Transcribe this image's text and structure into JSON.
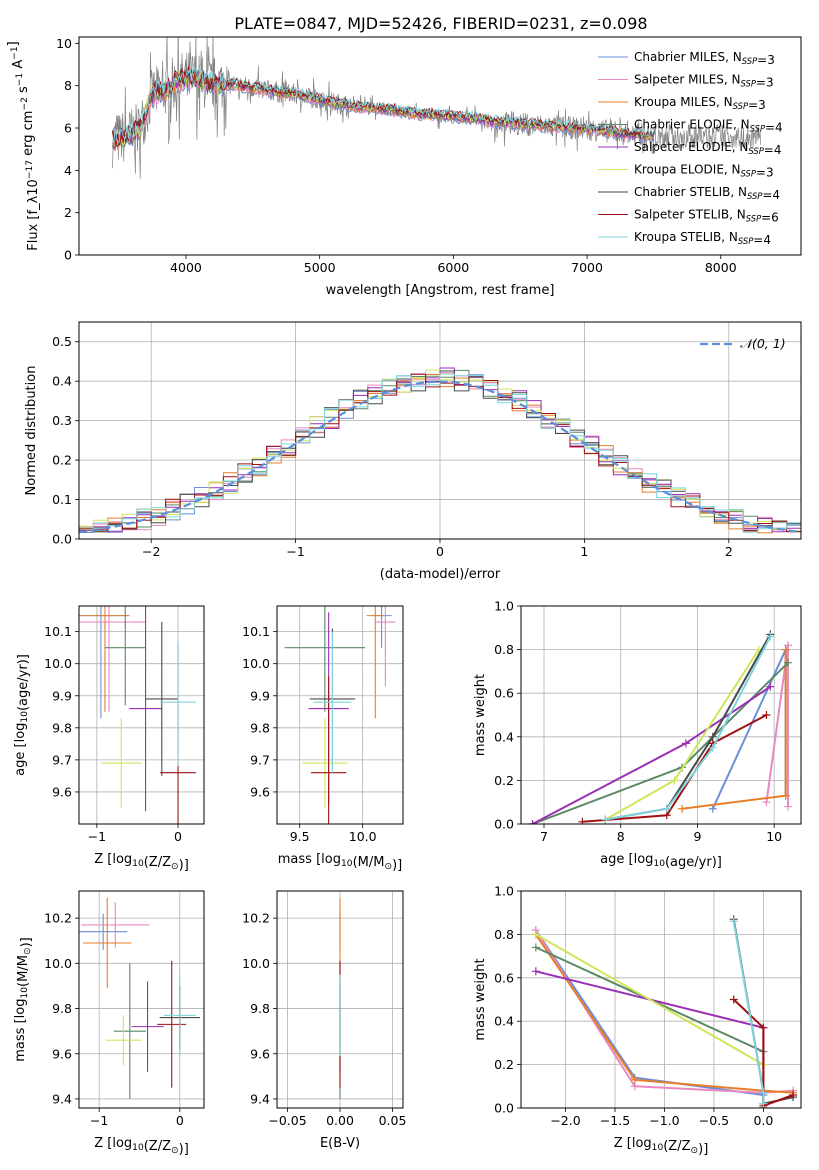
{
  "figure": {
    "title": "PLATE=0847, MJD=52426, FIBERID=0231, z=0.098"
  },
  "colors": {
    "chabrier_miles": "#6a8fd8",
    "salpeter_miles": "#e889c0",
    "kroupa_miles": "#e87e2a",
    "chabrier_elodie": "#5a8a64",
    "salpeter_elodie": "#9a2eb4",
    "kroupa_elodie": "#cfe65a",
    "chabrier_stelib": "#4a4a4a",
    "salpeter_stelib": "#a01010",
    "kroupa_stelib": "#7fd3dc",
    "data": "#808080",
    "gauss": "#5b8fdc"
  },
  "chart_data": [
    {
      "id": "spectrum",
      "type": "line",
      "xlabel": "wavelength [Angstrom, rest frame]",
      "ylabel": "Flux [f_λ10^-17 erg cm^-2 s^-1 A^-1]",
      "xlim": [
        3200,
        8600
      ],
      "ylim": [
        0,
        10.3
      ],
      "xticks": [
        4000,
        5000,
        6000,
        7000,
        8000
      ],
      "yticks": [
        0,
        2,
        4,
        6,
        8,
        10
      ],
      "legend_position": "top-right",
      "legend": [
        "Chabrier MILES, N_SSP=3",
        "Salpeter MILES, N_SSP=3",
        "Kroupa MILES, N_SSP=3",
        "Chabrier ELODIE, N_SSP=4",
        "Salpeter ELODIE, N_SSP=4",
        "Kroupa ELODIE, N_SSP=3",
        "Chabrier STELIB, N_SSP=4",
        "Salpeter STELIB, N_SSP=6",
        "Kroupa STELIB, N_SSP=4"
      ],
      "model_x": [
        3450,
        3550,
        3650,
        3750,
        3850,
        3950,
        4050,
        4150,
        4300,
        4500,
        4700,
        4900,
        5100,
        5300,
        5500,
        5700,
        5900,
        6100,
        6300,
        6500,
        6700,
        6900,
        7100,
        7300,
        7500
      ],
      "model_y": [
        5.4,
        5.6,
        5.9,
        7.6,
        7.8,
        8.3,
        8.4,
        8.1,
        8.1,
        7.9,
        7.7,
        7.5,
        7.2,
        7.0,
        6.9,
        6.7,
        6.6,
        6.5,
        6.3,
        6.2,
        6.1,
        6.0,
        5.9,
        5.7,
        5.6
      ]
    },
    {
      "id": "residuals",
      "type": "line",
      "xlabel": "(data-model)/error",
      "ylabel": "Normed distribution",
      "xlim": [
        -2.5,
        2.5
      ],
      "ylim": [
        0,
        0.55
      ],
      "xticks": [
        -2,
        -1,
        0,
        1,
        2
      ],
      "yticks": [
        0.0,
        0.1,
        0.2,
        0.3,
        0.4,
        0.5
      ],
      "legend": [
        "𝒩(0, 1)"
      ],
      "legend_position": "top-right",
      "bin_width": 0.1
    },
    {
      "id": "age_vs_Z",
      "type": "scatter",
      "xlabel": "Z [log10(Z/Z☉)]",
      "ylabel": "age  [log10(age/yr)]",
      "xlim": [
        -1.22,
        0.32
      ],
      "ylim": [
        9.5,
        10.18
      ],
      "xticks": [
        -1,
        0
      ],
      "yticks": [
        9.6,
        9.7,
        9.8,
        9.9,
        10.0,
        10.1
      ],
      "points": [
        {
          "model": "chabrier_miles",
          "x": -0.95,
          "y": 10.15,
          "xerr": 0.35,
          "yerr": 0.32
        },
        {
          "model": "salpeter_miles",
          "x": -0.85,
          "y": 10.13,
          "xerr": 0.45,
          "yerr": 0.28
        },
        {
          "model": "kroupa_miles",
          "x": -0.9,
          "y": 10.15,
          "xerr": 0.3,
          "yerr": 0.3
        },
        {
          "model": "chabrier_elodie",
          "x": -0.65,
          "y": 10.05,
          "xerr": 0.25,
          "yerr": 0.18
        },
        {
          "model": "salpeter_elodie",
          "x": -0.4,
          "y": 9.86,
          "xerr": 0.2,
          "yerr": 0.32
        },
        {
          "model": "kroupa_elodie",
          "x": -0.7,
          "y": 9.69,
          "xerr": 0.25,
          "yerr": 0.14
        },
        {
          "model": "chabrier_stelib",
          "x": -0.2,
          "y": 9.89,
          "xerr": 0.2,
          "yerr": 0.24
        },
        {
          "model": "salpeter_stelib",
          "x": 0.0,
          "y": 9.66,
          "xerr": 0.22,
          "yerr": 0.4
        },
        {
          "model": "kroupa_stelib",
          "x": 0.0,
          "y": 9.88,
          "xerr": 0.22,
          "yerr": 0.2
        }
      ]
    },
    {
      "id": "age_vs_mass",
      "type": "scatter",
      "xlabel": "mass [log10(M/M☉)]",
      "ylabel": "",
      "xlim": [
        9.32,
        10.32
      ],
      "ylim": [
        9.5,
        10.18
      ],
      "xticks": [
        9.5,
        10.0
      ],
      "yticks": [
        9.6,
        9.7,
        9.8,
        9.9,
        10.0,
        10.1
      ],
      "points": [
        {
          "model": "chabrier_miles",
          "x": 10.15,
          "y": 10.15,
          "xerr": 0.08,
          "yerr": 0.1
        },
        {
          "model": "salpeter_miles",
          "x": 10.18,
          "y": 10.13,
          "xerr": 0.08,
          "yerr": 0.2
        },
        {
          "model": "kroupa_miles",
          "x": 10.1,
          "y": 10.15,
          "xerr": 0.07,
          "yerr": 0.32
        },
        {
          "model": "chabrier_elodie",
          "x": 9.7,
          "y": 10.05,
          "xerr": 0.32,
          "yerr": 0.2
        },
        {
          "model": "salpeter_elodie",
          "x": 9.73,
          "y": 9.86,
          "xerr": 0.16,
          "yerr": 0.3
        },
        {
          "model": "kroupa_elodie",
          "x": 9.7,
          "y": 9.69,
          "xerr": 0.18,
          "yerr": 0.14
        },
        {
          "model": "chabrier_stelib",
          "x": 9.76,
          "y": 9.89,
          "xerr": 0.18,
          "yerr": 0.22
        },
        {
          "model": "salpeter_stelib",
          "x": 9.73,
          "y": 9.66,
          "xerr": 0.14,
          "yerr": 0.3
        },
        {
          "model": "kroupa_stelib",
          "x": 9.76,
          "y": 9.88,
          "xerr": 0.15,
          "yerr": 0.22
        }
      ]
    },
    {
      "id": "weight_vs_age",
      "type": "line",
      "xlabel": "age  [log10(age/yr)]",
      "ylabel": "mass weight",
      "xlim": [
        6.7,
        10.35
      ],
      "ylim": [
        0,
        1.0
      ],
      "xticks": [
        7,
        8,
        9,
        10
      ],
      "yticks": [
        0.0,
        0.2,
        0.4,
        0.6,
        0.8,
        1.0
      ],
      "series": [
        {
          "model": "chabrier_miles",
          "x": [
            9.2,
            10.15,
            10.15
          ],
          "y": [
            0.07,
            0.8,
            0.13
          ]
        },
        {
          "model": "salpeter_miles",
          "x": [
            9.9,
            10.18,
            10.18
          ],
          "y": [
            0.1,
            0.82,
            0.08
          ]
        },
        {
          "model": "kroupa_miles",
          "x": [
            8.8,
            10.15,
            10.15
          ],
          "y": [
            0.07,
            0.13,
            0.8
          ]
        },
        {
          "model": "chabrier_elodie",
          "x": [
            6.85,
            8.8,
            10.18
          ],
          "y": [
            0.0,
            0.26,
            0.74
          ]
        },
        {
          "model": "salpeter_elodie",
          "x": [
            6.85,
            8.85,
            9.95
          ],
          "y": [
            0.0,
            0.37,
            0.63
          ]
        },
        {
          "model": "kroupa_elodie",
          "x": [
            7.8,
            8.7,
            9.8
          ],
          "y": [
            0.02,
            0.2,
            0.8
          ]
        },
        {
          "model": "chabrier_stelib",
          "x": [
            7.8,
            8.6,
            9.2,
            9.95
          ],
          "y": [
            0.02,
            0.07,
            0.4,
            0.87
          ]
        },
        {
          "model": "salpeter_stelib",
          "x": [
            7.5,
            8.6,
            9.2,
            9.9
          ],
          "y": [
            0.01,
            0.04,
            0.37,
            0.5
          ]
        },
        {
          "model": "kroupa_stelib",
          "x": [
            7.8,
            8.6,
            9.2,
            9.95
          ],
          "y": [
            0.02,
            0.07,
            0.35,
            0.86
          ]
        }
      ]
    },
    {
      "id": "mass_vs_Z",
      "type": "scatter",
      "xlabel": "Z [log10(Z/Z☉)]",
      "ylabel": "mass [log10(M/M☉)]",
      "xlim": [
        -1.25,
        0.3
      ],
      "ylim": [
        9.36,
        10.32
      ],
      "xticks": [
        -1,
        0
      ],
      "yticks": [
        9.4,
        9.6,
        9.8,
        10.0,
        10.2
      ],
      "points": [
        {
          "model": "chabrier_miles",
          "x": -0.95,
          "y": 10.14,
          "xerr": 0.3,
          "yerr": 0.08
        },
        {
          "model": "salpeter_miles",
          "x": -0.8,
          "y": 10.17,
          "xerr": 0.42,
          "yerr": 0.1
        },
        {
          "model": "kroupa_miles",
          "x": -0.9,
          "y": 10.09,
          "xerr": 0.3,
          "yerr": 0.2
        },
        {
          "model": "chabrier_elodie",
          "x": -0.62,
          "y": 9.7,
          "xerr": 0.2,
          "yerr": 0.3
        },
        {
          "model": "salpeter_elodie",
          "x": -0.4,
          "y": 9.72,
          "xerr": 0.2,
          "yerr": 0.2
        },
        {
          "model": "kroupa_elodie",
          "x": -0.7,
          "y": 9.66,
          "xerr": 0.22,
          "yerr": 0.11
        },
        {
          "model": "chabrier_stelib",
          "x": 0.0,
          "y": 9.76,
          "xerr": 0.25,
          "yerr": 0.14
        },
        {
          "model": "salpeter_stelib",
          "x": -0.1,
          "y": 9.73,
          "xerr": 0.18,
          "yerr": 0.28
        },
        {
          "model": "kroupa_stelib",
          "x": 0.0,
          "y": 9.77,
          "xerr": 0.2,
          "yerr": 0.18
        }
      ]
    },
    {
      "id": "mass_vs_ebv",
      "type": "scatter",
      "xlabel": "E(B-V)",
      "ylabel": "",
      "xlim": [
        -0.06,
        0.06
      ],
      "ylim": [
        9.36,
        10.32
      ],
      "xticks": [
        -0.05,
        0.0,
        0.05
      ],
      "yticks": [
        9.4,
        9.6,
        9.8,
        10.0,
        10.2
      ],
      "points": [
        {
          "model": "chabrier_miles",
          "x": 0.0,
          "y": 10.14,
          "xerr": 0.0,
          "yerr": 0.08
        },
        {
          "model": "salpeter_miles",
          "x": 0.0,
          "y": 10.17,
          "xerr": 0.0,
          "yerr": 0.1
        },
        {
          "model": "kroupa_miles",
          "x": 0.0,
          "y": 10.09,
          "xerr": 0.0,
          "yerr": 0.2
        },
        {
          "model": "chabrier_elodie",
          "x": 0.0,
          "y": 9.7,
          "xerr": 0.0,
          "yerr": 0.3
        },
        {
          "model": "salpeter_elodie",
          "x": 0.0,
          "y": 9.72,
          "xerr": 0.0,
          "yerr": 0.2
        },
        {
          "model": "kroupa_elodie",
          "x": 0.0,
          "y": 9.66,
          "xerr": 0.0,
          "yerr": 0.11
        },
        {
          "model": "chabrier_stelib",
          "x": 0.0,
          "y": 9.76,
          "xerr": 0.0,
          "yerr": 0.14
        },
        {
          "model": "salpeter_stelib",
          "x": 0.0,
          "y": 9.73,
          "xerr": 0.0,
          "yerr": 0.28
        },
        {
          "model": "kroupa_stelib",
          "x": 0.0,
          "y": 9.77,
          "xerr": 0.0,
          "yerr": 0.18
        }
      ]
    },
    {
      "id": "weight_vs_Z",
      "type": "line",
      "xlabel": "Z [log10(Z/Z☉)]",
      "ylabel": "mass weight",
      "xlim": [
        -2.45,
        0.38
      ],
      "ylim": [
        0,
        1.0
      ],
      "xticks": [
        -2.0,
        -1.5,
        -1.0,
        -0.5,
        0.0
      ],
      "yticks": [
        0.0,
        0.2,
        0.4,
        0.6,
        0.8,
        1.0
      ],
      "series": [
        {
          "model": "chabrier_miles",
          "x": [
            -2.3,
            -1.3,
            0.0
          ],
          "y": [
            0.82,
            0.14,
            0.06
          ]
        },
        {
          "model": "salpeter_miles",
          "x": [
            -2.3,
            -1.3,
            0.0,
            0.3
          ],
          "y": [
            0.82,
            0.1,
            0.07,
            0.08
          ]
        },
        {
          "model": "kroupa_miles",
          "x": [
            -2.3,
            -1.3,
            0.0,
            0.3
          ],
          "y": [
            0.8,
            0.13,
            0.08,
            0.07
          ]
        },
        {
          "model": "chabrier_elodie",
          "x": [
            -2.3,
            0.0,
            0.0
          ],
          "y": [
            0.74,
            0.26,
            0.0
          ]
        },
        {
          "model": "salpeter_elodie",
          "x": [
            -2.3,
            0.0,
            0.0
          ],
          "y": [
            0.63,
            0.37,
            0.0
          ]
        },
        {
          "model": "kroupa_elodie",
          "x": [
            -2.3,
            0.0,
            0.0
          ],
          "y": [
            0.8,
            0.2,
            0.02
          ]
        },
        {
          "model": "chabrier_stelib",
          "x": [
            -0.3,
            0.0,
            0.0,
            0.3
          ],
          "y": [
            0.87,
            0.07,
            0.02,
            0.05
          ]
        },
        {
          "model": "salpeter_stelib",
          "x": [
            -0.3,
            0.0,
            0.0,
            0.3
          ],
          "y": [
            0.5,
            0.37,
            0.01,
            0.06
          ]
        },
        {
          "model": "kroupa_stelib",
          "x": [
            -0.3,
            0.0,
            0.0
          ],
          "y": [
            0.86,
            0.07,
            0.02
          ]
        }
      ]
    }
  ]
}
